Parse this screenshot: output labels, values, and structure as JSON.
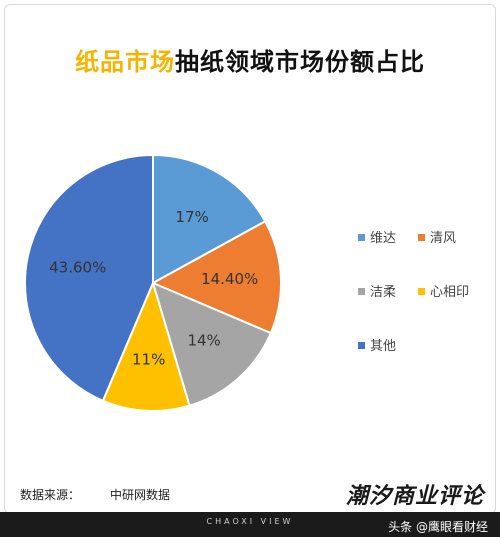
{
  "title": {
    "highlight": "纸品市场",
    "rest": "抽纸领域市场份额占比"
  },
  "chart_data": {
    "type": "pie",
    "slices": [
      {
        "name": "维达",
        "value": 17,
        "label": "17%",
        "color": "#5b9bd5"
      },
      {
        "name": "清风",
        "value": 14.4,
        "label": "14.40%",
        "color": "#ed7d31"
      },
      {
        "name": "洁柔",
        "value": 14,
        "label": "14%",
        "color": "#a5a5a5"
      },
      {
        "name": "心相印",
        "value": 11,
        "label": "11%",
        "color": "#ffc000"
      },
      {
        "name": "其他",
        "value": 43.6,
        "label": "43.60%",
        "color": "#4472c4"
      }
    ],
    "legend_position": "right"
  },
  "footer": {
    "source_label": "数据来源：",
    "source_value": "中研网数据",
    "brand": "潮汐商业评论",
    "bar_text": "CHAOXI VIEW",
    "watermark": "头条 @鹰眼看财经"
  }
}
